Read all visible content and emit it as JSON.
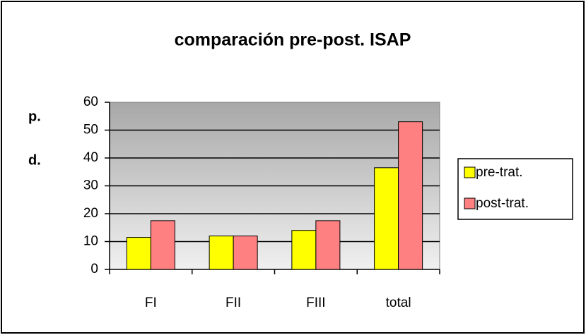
{
  "chart_data": {
    "type": "bar",
    "title": "comparación pre-post. ISAP",
    "ylabel_lines": [
      "p.",
      "d."
    ],
    "categories": [
      "FI",
      "FII",
      "FIII",
      "total"
    ],
    "series": [
      {
        "name": "pre-trat.",
        "color": "#ffff00",
        "values": [
          11.5,
          12,
          14,
          36.5
        ]
      },
      {
        "name": "post-trat.",
        "color": "#ff8080",
        "values": [
          17.5,
          12,
          17.5,
          53
        ]
      }
    ],
    "ylim": [
      0,
      60
    ],
    "yticks": [
      0,
      10,
      20,
      30,
      40,
      50,
      60
    ],
    "grid": true,
    "legend": "right"
  }
}
